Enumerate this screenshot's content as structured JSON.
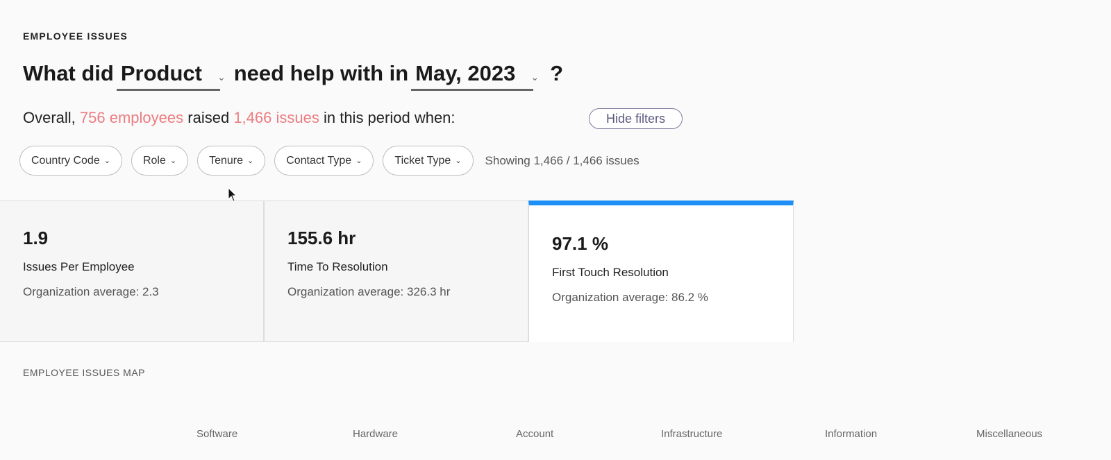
{
  "header": {
    "eyebrow": "EMPLOYEE ISSUES"
  },
  "question": {
    "prefix": "What did",
    "department": "Product",
    "middle": "need help with in",
    "period": "May, 2023",
    "suffix": "?"
  },
  "summary": {
    "prefix": "Overall,",
    "employees": "756 employees",
    "middle": "raised",
    "issues": "1,466 issues",
    "suffix": "in this period when:",
    "hide_filters": "Hide filters"
  },
  "filters": [
    {
      "label": "Country Code"
    },
    {
      "label": "Role"
    },
    {
      "label": "Tenure"
    },
    {
      "label": "Contact Type"
    },
    {
      "label": "Ticket Type"
    }
  ],
  "showing": "Showing 1,466 / 1,466 issues",
  "cards": [
    {
      "value": "1.9",
      "label": "Issues Per Employee",
      "avg": "Organization average: 2.3"
    },
    {
      "value": "155.6 hr",
      "label": "Time To Resolution",
      "avg": "Organization average: 326.3 hr"
    },
    {
      "value": "97.1 %",
      "label": "First Touch Resolution",
      "avg": "Organization average: 86.2 %",
      "active": true
    }
  ],
  "map": {
    "title": "EMPLOYEE ISSUES MAP",
    "categories": [
      "Software",
      "Hardware",
      "Account",
      "Infrastructure",
      "Information",
      "Miscellaneous"
    ]
  },
  "colors": {
    "highlight": "#ec7c80",
    "accent": "#1e90f5"
  }
}
